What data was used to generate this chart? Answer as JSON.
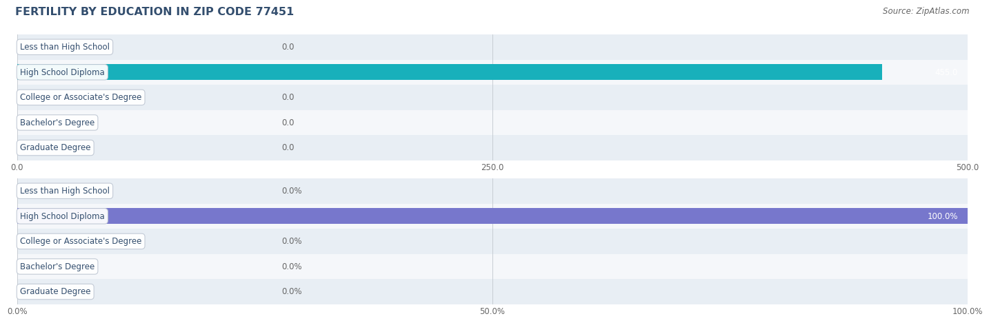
{
  "title": "FERTILITY BY EDUCATION IN ZIP CODE 77451",
  "source": "Source: ZipAtlas.com",
  "categories": [
    "Less than High School",
    "High School Diploma",
    "College or Associate's Degree",
    "Bachelor's Degree",
    "Graduate Degree"
  ],
  "values_count": [
    0.0,
    455.0,
    0.0,
    0.0,
    0.0
  ],
  "values_pct": [
    0.0,
    100.0,
    0.0,
    0.0,
    0.0
  ],
  "xlim_count": [
    0,
    500
  ],
  "xlim_pct": [
    0,
    100
  ],
  "xticks_count": [
    0.0,
    250.0,
    500.0
  ],
  "xticks_pct": [
    0.0,
    50.0,
    100.0
  ],
  "xtick_labels_count": [
    "0.0",
    "250.0",
    "500.0"
  ],
  "xtick_labels_pct": [
    "0.0%",
    "50.0%",
    "100.0%"
  ],
  "bar_color_teal_light": "#7dcfcf",
  "bar_color_teal_dark": "#18b0bb",
  "bar_color_purple_light": "#aaaaee",
  "bar_color_purple_dark": "#7777cc",
  "row_bg_odd": "#e8eef4",
  "row_bg_even": "#f5f7fa",
  "title_color": "#334e6e",
  "axis_label_color": "#666666",
  "bar_height": 0.62,
  "title_fontsize": 11.5,
  "label_fontsize": 8.5,
  "value_fontsize": 8.5,
  "tick_fontsize": 8.5,
  "source_fontsize": 8.5,
  "fig_width": 14.06,
  "fig_height": 4.75
}
